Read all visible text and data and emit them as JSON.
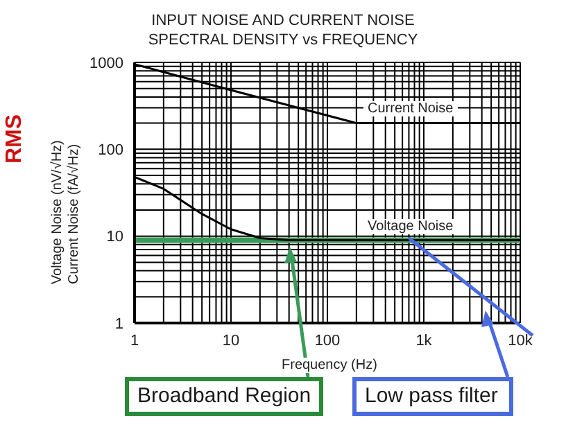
{
  "chart_data": {
    "type": "line",
    "title": "INPUT NOISE AND CURRENT NOISE\nSPECTRAL DENSITY vs FREQUENCY",
    "xlabel": "Frequency (Hz)",
    "ylabel": "Voltage Noise (nV/√Hz)\nCurrent Noise (fA/√Hz)",
    "log": "xy",
    "grid": true,
    "xlim": [
      1,
      10000
    ],
    "ylim": [
      1,
      1000
    ],
    "xticks": [
      1,
      {
        "value": 2,
        "label": null
      },
      {
        "value": 3,
        "label": null
      },
      {
        "value": 4,
        "label": null
      },
      {
        "value": 5,
        "label": null
      },
      {
        "value": 6,
        "label": null
      },
      {
        "value": 7,
        "label": null
      },
      {
        "value": 8,
        "label": null
      },
      {
        "value": 9,
        "label": null
      },
      10,
      {
        "value": 20,
        "label": null
      },
      {
        "value": 30,
        "label": null
      },
      {
        "value": 40,
        "label": null
      },
      {
        "value": 50,
        "label": null
      },
      {
        "value": 60,
        "label": null
      },
      {
        "value": 70,
        "label": null
      },
      {
        "value": 80,
        "label": null
      },
      {
        "value": 90,
        "label": null
      },
      100,
      {
        "value": 200,
        "label": null
      },
      {
        "value": 300,
        "label": null
      },
      {
        "value": 400,
        "label": null
      },
      {
        "value": 500,
        "label": null
      },
      {
        "value": 600,
        "label": null
      },
      {
        "value": 700,
        "label": null
      },
      {
        "value": 800,
        "label": null
      },
      {
        "value": 900,
        "label": null
      },
      {
        "value": 1000,
        "label": "1k"
      },
      {
        "value": 2000,
        "label": null
      },
      {
        "value": 3000,
        "label": null
      },
      {
        "value": 4000,
        "label": null
      },
      {
        "value": 5000,
        "label": null
      },
      {
        "value": 6000,
        "label": null
      },
      {
        "value": 7000,
        "label": null
      },
      {
        "value": 8000,
        "label": null
      },
      {
        "value": 9000,
        "label": null
      },
      {
        "value": 10000,
        "label": "10k"
      }
    ],
    "yticks": [
      1,
      {
        "value": 2,
        "label": null
      },
      {
        "value": 3,
        "label": null
      },
      {
        "value": 4,
        "label": null
      },
      {
        "value": 5,
        "label": null
      },
      {
        "value": 6,
        "label": null
      },
      {
        "value": 7,
        "label": null
      },
      {
        "value": 8,
        "label": null
      },
      {
        "value": 9,
        "label": null
      },
      10,
      {
        "value": 20,
        "label": null
      },
      {
        "value": 30,
        "label": null
      },
      {
        "value": 40,
        "label": null
      },
      {
        "value": 50,
        "label": null
      },
      {
        "value": 60,
        "label": null
      },
      {
        "value": 70,
        "label": null
      },
      {
        "value": 80,
        "label": null
      },
      {
        "value": 90,
        "label": null
      },
      100,
      {
        "value": 200,
        "label": null
      },
      {
        "value": 300,
        "label": null
      },
      {
        "value": 400,
        "label": null
      },
      {
        "value": 500,
        "label": null
      },
      {
        "value": 600,
        "label": null
      },
      {
        "value": 700,
        "label": null
      },
      {
        "value": 800,
        "label": null
      },
      {
        "value": 900,
        "label": null
      },
      1000
    ],
    "series": [
      {
        "name": "Current Noise",
        "color": "#000000",
        "x": [
          1,
          10,
          200,
          10000
        ],
        "values": [
          950,
          480,
          200,
          200
        ]
      },
      {
        "name": "Voltage Noise",
        "color": "#000000",
        "x": [
          1,
          2,
          5,
          10,
          20,
          40,
          10000
        ],
        "values": [
          48,
          35,
          18,
          12,
          9.5,
          9,
          9
        ]
      }
    ],
    "ref_lines": [
      {
        "axis": "y",
        "value": 9,
        "label": null,
        "color": "#3a9a5a"
      }
    ],
    "annotations": [
      "RMS",
      "Broadband Region",
      "Low pass filter"
    ]
  }
}
